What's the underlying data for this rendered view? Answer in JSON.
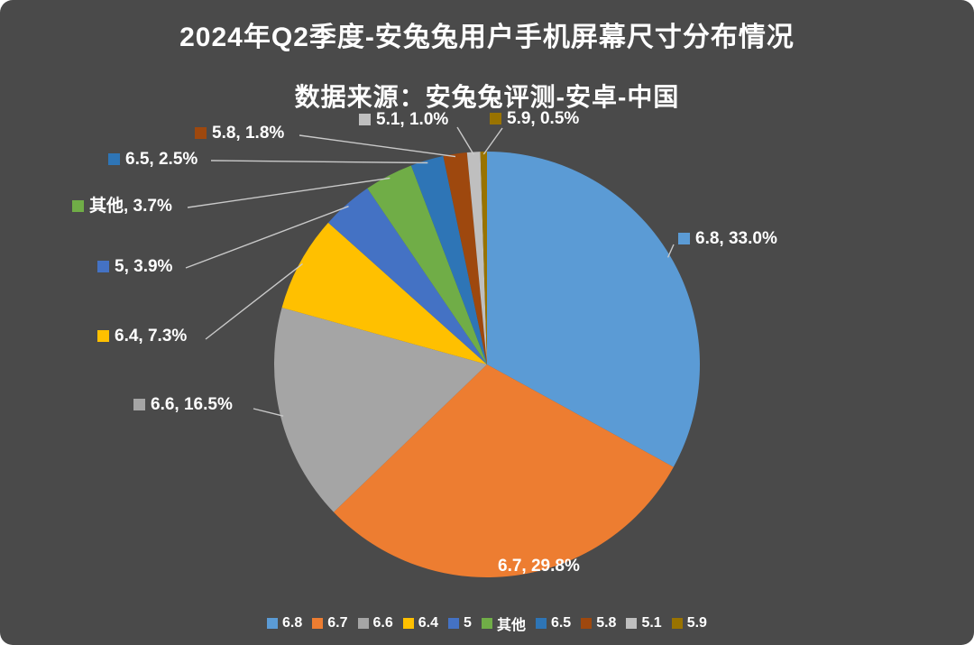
{
  "title": "2024年Q2季度-安兔兔用户手机屏幕尺寸分布情况",
  "subtitle": "数据来源：安兔兔评测-安卓-中国",
  "chart_data": {
    "type": "pie",
    "categories": [
      "6.8",
      "6.7",
      "6.6",
      "6.4",
      "5",
      "其他",
      "6.5",
      "5.8",
      "5.1",
      "5.9"
    ],
    "values": [
      33.0,
      29.8,
      16.5,
      7.3,
      3.9,
      3.7,
      2.5,
      1.8,
      1.0,
      0.5
    ],
    "labels": [
      "6.8, 33.0%",
      "6.7, 29.8%",
      "6.6, 16.5%",
      "6.4, 7.3%",
      "5, 3.9%",
      "其他, 3.7%",
      "6.5, 2.5%",
      "5.8, 1.8%",
      "5.1, 1.0%",
      "5.9, 0.5%"
    ],
    "colors": [
      "#5B9BD5",
      "#ED7D31",
      "#A5A5A5",
      "#FFC000",
      "#4472C4",
      "#70AD47",
      "#2E75B6",
      "#9E480E",
      "#BFBFBF",
      "#997300"
    ],
    "title": "2024年Q2季度-安兔兔用户手机屏幕尺寸分布情况",
    "subtitle": "数据来源：安兔兔评测-安卓-中国",
    "legend_position": "bottom",
    "start_angle_deg": 0,
    "direction": "clockwise",
    "background_color": "#4a4a4a",
    "text_color": "#ffffff",
    "leader_line_color": "#c9c9c9"
  }
}
